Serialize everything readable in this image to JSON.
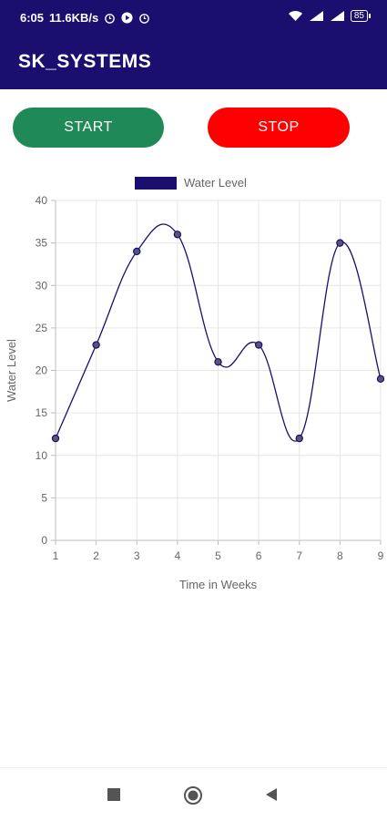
{
  "status_bar": {
    "time": "6:05",
    "net_speed": "11.6KB/s",
    "battery": "85",
    "icons": [
      "alarm-icon",
      "play-icon",
      "alarm-icon",
      "wifi-icon",
      "signal-icon",
      "signal-icon",
      "battery-icon"
    ]
  },
  "app_bar": {
    "title": "SK_SYSTEMS"
  },
  "buttons": {
    "start_label": "START",
    "stop_label": "STOP",
    "start_color": "#1f8a57",
    "stop_color": "#ff0000"
  },
  "chart_data": {
    "type": "line",
    "x": [
      1,
      2,
      3,
      4,
      5,
      6,
      7,
      8,
      9
    ],
    "series": [
      {
        "name": "Water Level",
        "values": [
          12,
          23,
          34,
          36,
          21,
          23,
          12,
          35,
          19
        ],
        "color": "#1a0f6e"
      }
    ],
    "xlabel": "Time in Weeks",
    "ylabel": "Water Level",
    "ylim": [
      0,
      40
    ],
    "yticks": [
      0,
      5,
      10,
      15,
      20,
      25,
      30,
      35,
      40
    ],
    "xticks": [
      1,
      2,
      3,
      4,
      5,
      6,
      7,
      8,
      9
    ],
    "grid": true,
    "legend": "top-center"
  },
  "nav": {
    "icons": [
      "recent-apps-icon",
      "home-icon",
      "back-icon"
    ]
  }
}
